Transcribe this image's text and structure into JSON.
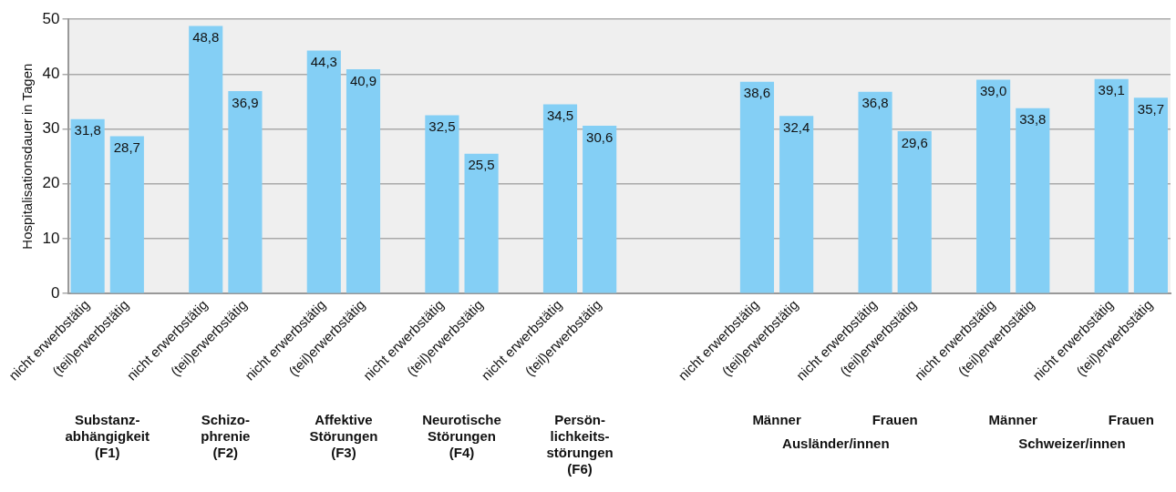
{
  "chart_data": {
    "type": "bar",
    "ylabel": "Hospitalisationsdauer in Tagen",
    "categories": [
      "nicht erwerbstätig",
      "(teil)erwerbstätig",
      null,
      "nicht erwerbstätig",
      "(teil)erwerbstätig",
      null,
      "nicht erwerbstätig",
      "(teil)erwerbstätig",
      null,
      "nicht erwerbstätig",
      "(teil)erwerbstätig",
      null,
      "nicht erwerbstätig",
      "(teil)erwerbstätig",
      null,
      null,
      null,
      "nicht erwerbstätig",
      "(teil)erwerbstätig",
      null,
      "nicht erwerbstätig",
      "(teil)erwerbstätig",
      null,
      "nicht erwerbstätig",
      "(teil)erwerbstätig",
      null,
      "nicht erwerbstätig",
      "(teil)erwerbstätig"
    ],
    "values": [
      31.8,
      28.7,
      null,
      48.8,
      36.9,
      null,
      44.3,
      40.9,
      null,
      32.5,
      25.5,
      null,
      34.5,
      30.6,
      null,
      null,
      null,
      38.6,
      32.4,
      null,
      36.8,
      29.6,
      null,
      39.0,
      33.8,
      null,
      39.1,
      35.7
    ],
    "value_labels": [
      "31,8",
      "28,7",
      null,
      "48,8",
      "36,9",
      null,
      "44,3",
      "40,9",
      null,
      "32,5",
      "25,5",
      null,
      "34,5",
      "30,6",
      null,
      null,
      null,
      "38,6",
      "32,4",
      null,
      "36,8",
      "29,6",
      null,
      "39,0",
      "33,8",
      null,
      "39,1",
      "35,7"
    ],
    "color": "#84cff5",
    "ylim": [
      0,
      50
    ],
    "yticks": [
      0,
      10,
      20,
      30,
      40,
      50
    ],
    "grid": "y",
    "legend": false,
    "annotations": [
      "Substanz-\nabhängigkeit\n(F1)",
      "Schizo-\nphrenie\n(F2)",
      "Affektive\nStörungen\n(F3)",
      "Neurotische\nStörungen\n(F4)",
      "Persön-\nlichkeits-\nstörungen\n(F6)",
      "Männer",
      "Frauen",
      "Männer",
      "Frauen",
      "Ausländer/innen",
      "Schweizer/innen"
    ]
  }
}
